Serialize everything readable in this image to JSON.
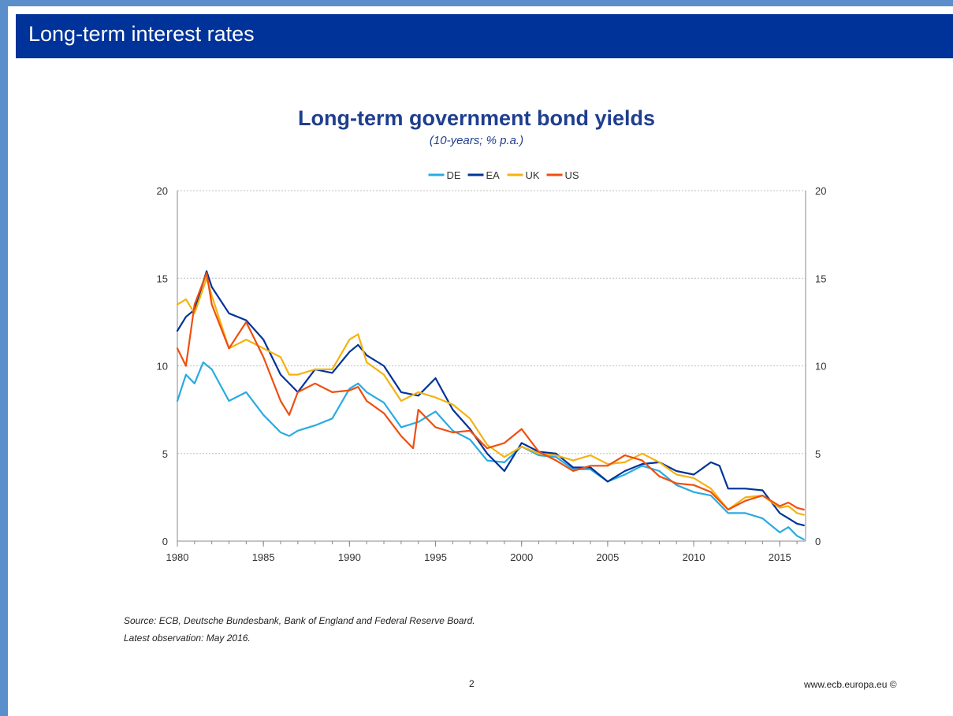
{
  "header": {
    "title": "Long-term interest rates"
  },
  "footer": {
    "source": "Source: ECB, Deutsche Bundesbank, Bank of England and Federal Reserve Board.",
    "latest": "Latest observation: May 2016.",
    "page_number": "2",
    "website": "www.ecb.europa.eu ©"
  },
  "chart_data": {
    "type": "line",
    "title": "Long-term government bond yields",
    "subtitle": "(10-years; % p.a.)",
    "xlabel": "",
    "ylabel": "",
    "xlim": [
      1980,
      2016.5
    ],
    "ylim": [
      0,
      20
    ],
    "x_ticks": [
      1980,
      1985,
      1990,
      1995,
      2000,
      2005,
      2010,
      2015
    ],
    "y_ticks": [
      0,
      5,
      10,
      15,
      20
    ],
    "y_axis_both_sides": true,
    "grid": "horizontal-dotted",
    "legend_position": "top-center",
    "series": [
      {
        "name": "DE",
        "color": "#29abe2",
        "x": [
          1980,
          1980.5,
          1981,
          1981.5,
          1982,
          1983,
          1984,
          1985,
          1986,
          1986.5,
          1987,
          1988,
          1989,
          1990,
          1990.5,
          1991,
          1992,
          1993,
          1994,
          1995,
          1996,
          1997,
          1998,
          1999,
          2000,
          2001,
          2002,
          2003,
          2004,
          2005,
          2006,
          2007,
          2008,
          2009,
          2010,
          2011,
          2012,
          2013,
          2014,
          2015,
          2015.5,
          2016,
          2016.4
        ],
        "y": [
          8.0,
          9.5,
          9.0,
          10.2,
          9.8,
          8.0,
          8.5,
          7.2,
          6.2,
          6.0,
          6.3,
          6.6,
          7.0,
          8.7,
          9.0,
          8.5,
          7.9,
          6.5,
          6.8,
          7.4,
          6.3,
          5.8,
          4.6,
          4.5,
          5.4,
          4.9,
          4.8,
          4.1,
          4.1,
          3.4,
          3.8,
          4.3,
          4.0,
          3.2,
          2.8,
          2.6,
          1.6,
          1.6,
          1.3,
          0.5,
          0.8,
          0.3,
          0.1
        ]
      },
      {
        "name": "EA",
        "color": "#003399",
        "x": [
          1980,
          1980.5,
          1981,
          1981.7,
          1982,
          1983,
          1984,
          1985,
          1986,
          1987,
          1988,
          1989,
          1990,
          1990.5,
          1991,
          1992,
          1993,
          1994,
          1995,
          1996,
          1997,
          1998,
          1999,
          2000,
          2001,
          2002,
          2003,
          2004,
          2005,
          2006,
          2007,
          2008,
          2009,
          2010,
          2011,
          2011.5,
          2012,
          2013,
          2014,
          2015,
          2015.5,
          2016,
          2016.4
        ],
        "y": [
          12.0,
          12.8,
          13.2,
          15.4,
          14.5,
          13.0,
          12.6,
          11.5,
          9.5,
          8.5,
          9.8,
          9.6,
          10.8,
          11.2,
          10.6,
          10.0,
          8.5,
          8.3,
          9.3,
          7.5,
          6.4,
          5.0,
          4.0,
          5.6,
          5.1,
          5.0,
          4.2,
          4.2,
          3.4,
          4.0,
          4.4,
          4.5,
          4.0,
          3.8,
          4.5,
          4.3,
          3.0,
          3.0,
          2.9,
          1.6,
          1.3,
          1.0,
          0.9
        ]
      },
      {
        "name": "UK",
        "color": "#f5b20f",
        "x": [
          1980,
          1980.5,
          1981,
          1981.7,
          1982,
          1983,
          1984,
          1985,
          1986,
          1986.5,
          1987,
          1988,
          1989,
          1990,
          1990.5,
          1991,
          1992,
          1993,
          1994,
          1995,
          1996,
          1997,
          1998,
          1999,
          2000,
          2001,
          2002,
          2003,
          2004,
          2005,
          2006,
          2007,
          2008,
          2009,
          2010,
          2011,
          2012,
          2013,
          2014,
          2015,
          2015.5,
          2016,
          2016.4
        ],
        "y": [
          13.5,
          13.8,
          13.0,
          15.0,
          14.0,
          11.0,
          11.5,
          11.0,
          10.5,
          9.5,
          9.5,
          9.8,
          9.8,
          11.5,
          11.8,
          10.2,
          9.5,
          8.0,
          8.5,
          8.2,
          7.8,
          7.0,
          5.5,
          4.8,
          5.4,
          5.0,
          4.9,
          4.6,
          4.9,
          4.4,
          4.5,
          5.0,
          4.5,
          3.8,
          3.6,
          3.0,
          1.8,
          2.5,
          2.6,
          1.9,
          2.0,
          1.6,
          1.5
        ]
      },
      {
        "name": "US",
        "color": "#f04e0e",
        "x": [
          1980,
          1980.5,
          1981,
          1981.7,
          1982,
          1983,
          1984,
          1985,
          1986,
          1986.5,
          1987,
          1988,
          1989,
          1990,
          1990.5,
          1991,
          1992,
          1993,
          1993.7,
          1994,
          1995,
          1996,
          1997,
          1998,
          1999,
          2000,
          2001,
          2002,
          2003,
          2004,
          2005,
          2006,
          2007,
          2008,
          2009,
          2010,
          2011,
          2012,
          2013,
          2014,
          2015,
          2015.5,
          2016,
          2016.4
        ],
        "y": [
          11.0,
          10.0,
          13.5,
          15.3,
          13.5,
          11.0,
          12.5,
          10.5,
          8.0,
          7.2,
          8.5,
          9.0,
          8.5,
          8.6,
          8.8,
          8.0,
          7.3,
          6.0,
          5.3,
          7.5,
          6.5,
          6.2,
          6.3,
          5.3,
          5.6,
          6.4,
          5.1,
          4.6,
          4.0,
          4.3,
          4.3,
          4.9,
          4.6,
          3.7,
          3.3,
          3.2,
          2.8,
          1.8,
          2.3,
          2.6,
          2.0,
          2.2,
          1.9,
          1.8
        ]
      }
    ]
  }
}
